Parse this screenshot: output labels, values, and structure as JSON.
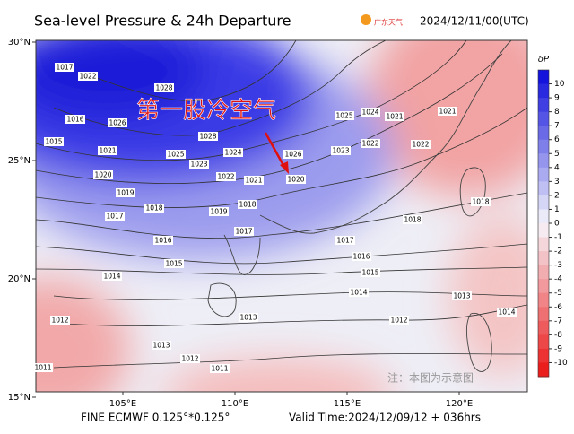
{
  "header": {
    "title": "Sea-level Pressure & 24h Departure",
    "logo": "广东天气",
    "init_time": "2024/12/11/00(UTC)"
  },
  "footer": {
    "model": "FINE ECMWF 0.125°*0.125°",
    "valid_time": "Valid Time:2024/12/09/12 + 036hrs"
  },
  "annotation": "第一股冷空气",
  "watermark": "注：本图为示意图",
  "lat_ticks": [
    {
      "value": 30,
      "label": "30°N"
    },
    {
      "value": 25,
      "label": "25°N"
    },
    {
      "value": 20,
      "label": "20°N"
    },
    {
      "value": 15,
      "label": "15°N"
    }
  ],
  "lon_ticks": [
    {
      "value": 105,
      "label": "105°E"
    },
    {
      "value": 110,
      "label": "110°E"
    },
    {
      "value": 115,
      "label": "115°E"
    },
    {
      "value": 120,
      "label": "120°E"
    }
  ],
  "colorbar": {
    "label": "δP",
    "ticks": [
      10,
      9,
      8,
      7,
      6,
      5,
      4,
      3,
      2,
      1,
      0,
      -1,
      -2,
      -3,
      -4,
      -5,
      -6,
      -7,
      -8,
      -9,
      -10
    ]
  },
  "isobar_labels": [
    "1017",
    "1022",
    "1028",
    "1026",
    "1016",
    "1015",
    "1021",
    "1020",
    "1025",
    "1028",
    "1024",
    "1023",
    "1022",
    "1021",
    "1019",
    "1018",
    "1019",
    "1018",
    "1017",
    "1016",
    "1017",
    "1015",
    "1026",
    "1025",
    "1024",
    "1021",
    "1021",
    "1022",
    "1023",
    "1022",
    "1020",
    "1018",
    "1017",
    "1016",
    "1015",
    "1014",
    "1014",
    "1013",
    "1012",
    "1013",
    "1014",
    "1012",
    "1012",
    "1011",
    "1011",
    "1013",
    "1018"
  ]
}
